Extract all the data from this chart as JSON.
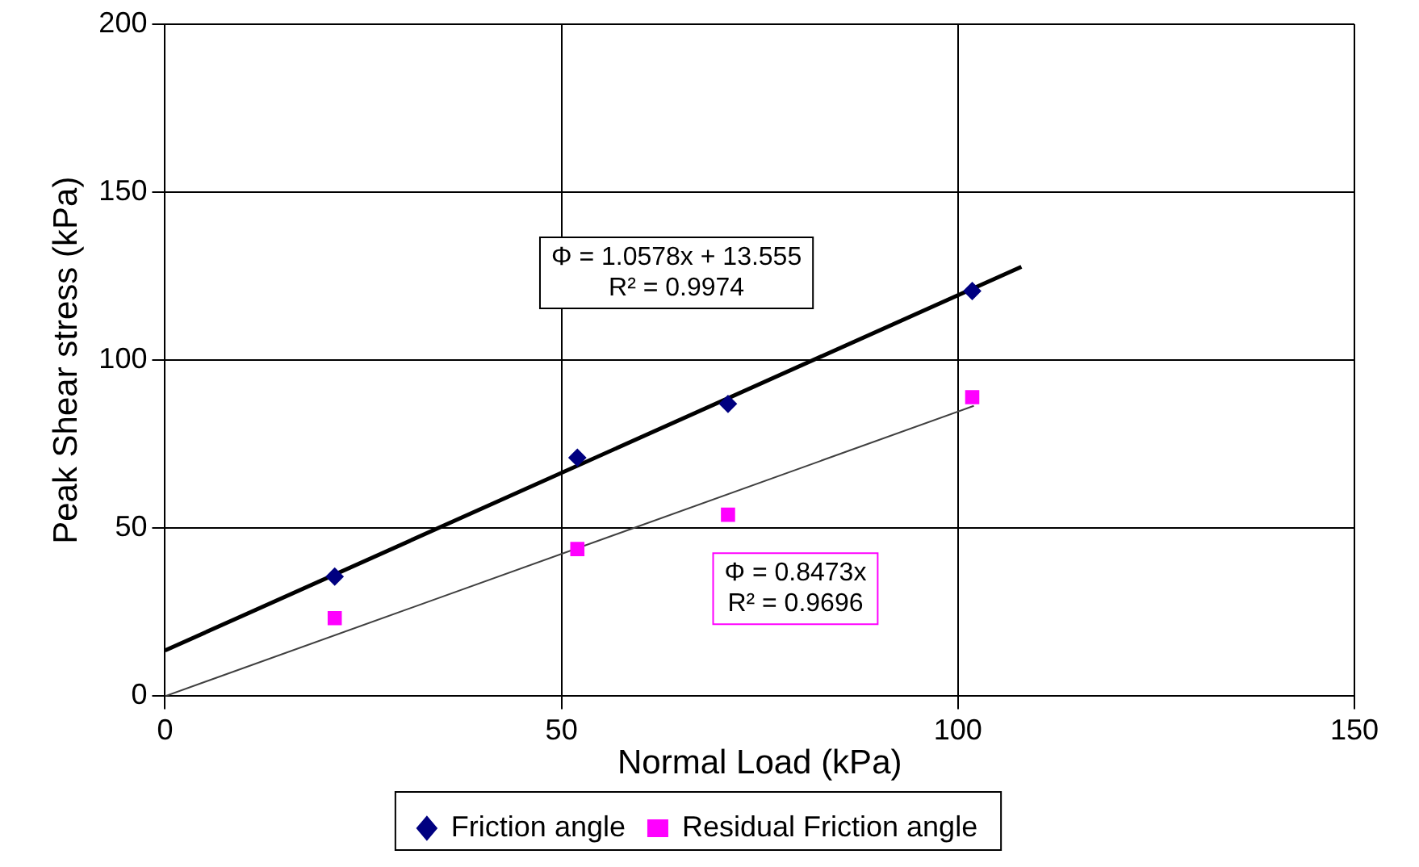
{
  "chart_data": {
    "type": "scatter",
    "xlabel": "Normal Load (kPa)",
    "ylabel": "Peak Shear stress (kPa)",
    "xlim": [
      0,
      150
    ],
    "xticks": [
      0,
      50,
      100,
      150
    ],
    "ylim": [
      0,
      200
    ],
    "yticks": [
      0,
      50,
      100,
      150,
      200
    ],
    "grid": true,
    "legend": "bottom",
    "series": [
      {
        "name": "Friction angle",
        "color": "#000080",
        "marker": "diamond",
        "x": [
          21.4,
          52,
          71,
          101.8
        ],
        "values": [
          35.6,
          71,
          87,
          120.6
        ]
      },
      {
        "name": "Residual Friction angle",
        "color": "#ff00ff",
        "marker": "square",
        "x": [
          21.4,
          52,
          71,
          101.8
        ],
        "values": [
          23.2,
          43.8,
          54,
          89
        ]
      },
      {
        "type": "line",
        "color": "#000000",
        "marker": "none",
        "x": [
          0,
          108
        ],
        "values": [
          13.6,
          127.8
        ]
      },
      {
        "type": "line",
        "color": "#404040",
        "marker": "none",
        "x": [
          0,
          102
        ],
        "values": [
          0,
          86.4
        ]
      }
    ],
    "annotations": [
      "Φ = 1.0578x + 13.555\nR² = 0.9974",
      "Φ = 0.8473x\nR² = 0.9696"
    ]
  }
}
